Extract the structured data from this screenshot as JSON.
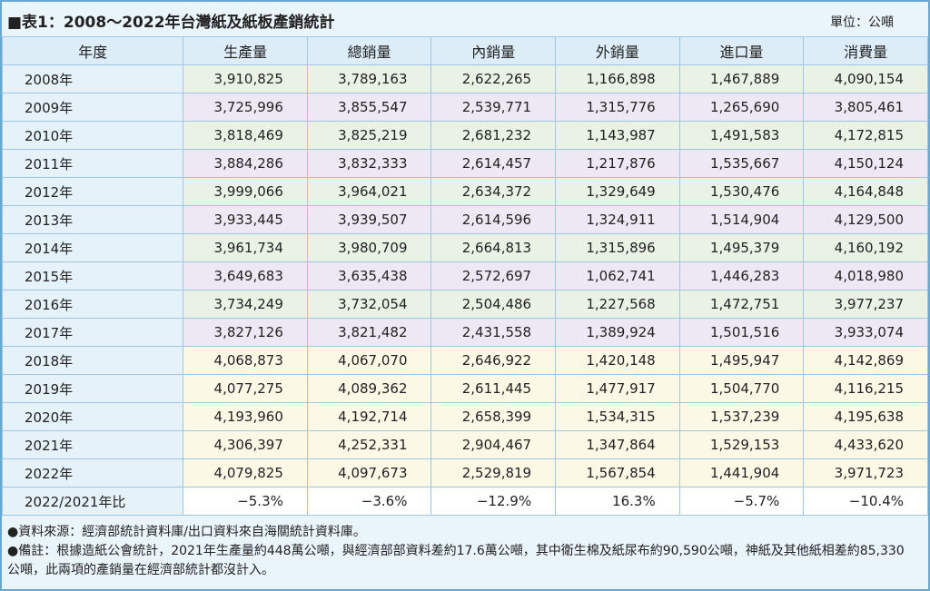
{
  "header": {
    "title": "■表1：2008～2022年台灣紙及紙板產銷統計",
    "unit": "單位：公噸"
  },
  "table": {
    "columns": [
      "年度",
      "生產量",
      "總銷量",
      "內銷量",
      "外銷量",
      "進口量",
      "消費量"
    ],
    "rows": [
      [
        "2008年",
        "3,910,825",
        "3,789,163",
        "2,622,265",
        "1,166,898",
        "1,467,889",
        "4,090,154"
      ],
      [
        "2009年",
        "3,725,996",
        "3,855,547",
        "2,539,771",
        "1,315,776",
        "1,265,690",
        "3,805,461"
      ],
      [
        "2010年",
        "3,818,469",
        "3,825,219",
        "2,681,232",
        "1,143,987",
        "1,491,583",
        "4,172,815"
      ],
      [
        "2011年",
        "3,884,286",
        "3,832,333",
        "2,614,457",
        "1,217,876",
        "1,535,667",
        "4,150,124"
      ],
      [
        "2012年",
        "3,999,066",
        "3,964,021",
        "2,634,372",
        "1,329,649",
        "1,530,476",
        "4,164,848"
      ],
      [
        "2013年",
        "3,933,445",
        "3,939,507",
        "2,614,596",
        "1,324,911",
        "1,514,904",
        "4,129,500"
      ],
      [
        "2014年",
        "3,961,734",
        "3,980,709",
        "2,664,813",
        "1,315,896",
        "1,495,379",
        "4,160,192"
      ],
      [
        "2015年",
        "3,649,683",
        "3,635,438",
        "2,572,697",
        "1,062,741",
        "1,446,283",
        "4,018,980"
      ],
      [
        "2016年",
        "3,734,249",
        "3,732,054",
        "2,504,486",
        "1,227,568",
        "1,472,751",
        "3,977,237"
      ],
      [
        "2017年",
        "3,827,126",
        "3,821,482",
        "2,431,558",
        "1,389,924",
        "1,501,516",
        "3,933,074"
      ],
      [
        "2018年",
        "4,068,873",
        "4,067,070",
        "2,646,922",
        "1,420,148",
        "1,495,947",
        "4,142,869"
      ],
      [
        "2019年",
        "4,077,275",
        "4,089,362",
        "2,611,445",
        "1,477,917",
        "1,504,770",
        "4,116,215"
      ],
      [
        "2020年",
        "4,193,960",
        "4,192,714",
        "2,658,399",
        "1,534,315",
        "1,537,239",
        "4,195,638"
      ],
      [
        "2021年",
        "4,306,397",
        "4,252,331",
        "2,904,467",
        "1,347,864",
        "1,529,153",
        "4,433,620"
      ],
      [
        "2022年",
        "4,079,825",
        "4,097,673",
        "2,529,819",
        "1,567,854",
        "1,441,904",
        "3,971,723"
      ],
      [
        "2022/2021年比",
        "−5.3%",
        "−3.6%",
        "−12.9%",
        "16.3%",
        "−5.7%",
        "−10.4%"
      ]
    ]
  },
  "notes": [
    "●資料來源：經濟部統計資料庫/出口資料來自海關統計資料庫。",
    "●備註：根據造紙公會統計，2021年生產量約448萬公噸，與經濟部部資料差約17.6萬公噸，其中衛生棉及紙尿布約90,590公噸，神紙及其他紙相差約85,330公噸，此兩項的產銷量在經濟部統計都沒計入。"
  ]
}
